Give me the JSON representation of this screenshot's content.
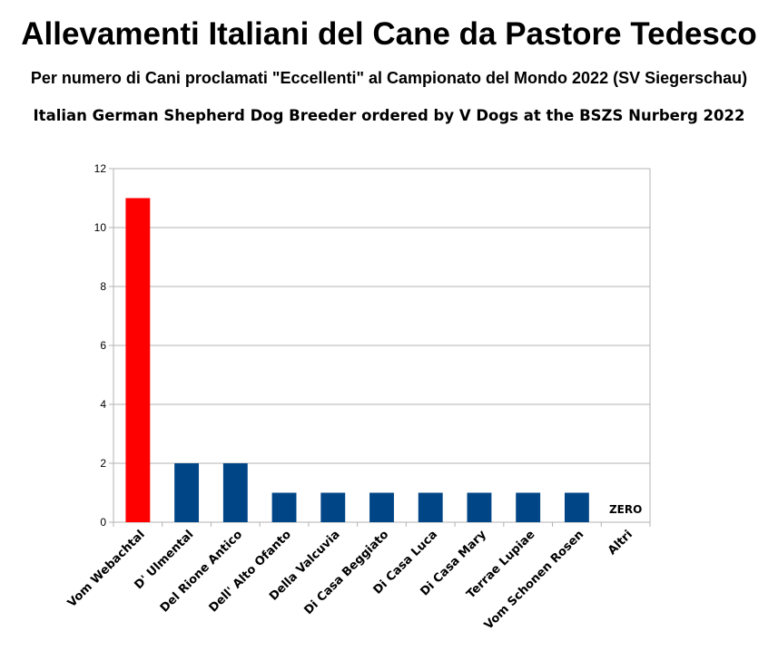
{
  "header": {
    "title": "Allevamenti Italiani del Cane da Pastore Tedesco",
    "subtitle": "Per numero di Cani proclamati \"Eccellenti\" al Campionato del Mondo 2022 (SV Siegerschau)",
    "subtitle2": "Italian German Shepherd Dog Breeder ordered by V Dogs at the BSZS Nurberg 2022"
  },
  "chart_data": {
    "type": "bar",
    "title": "Allevamenti Italiani del Cane da Pastore Tedesco",
    "subtitle": "Per numero di Cani proclamati \"Eccellenti\" al Campionato del Mondo 2022 (SV Siegerschau)",
    "xlabel": "",
    "ylabel": "",
    "categories": [
      "Vom Webachtal",
      "D' Ulmental",
      "Del Rione Antico",
      "Dell' Alto Ofanto",
      "Della Valcuvia",
      "Di Casa Beggiato",
      "Di Casa Luca",
      "Di Casa Mary",
      "Terrae Lupiae",
      "Vom Schonen Rosen",
      "Altri"
    ],
    "values": [
      11,
      2,
      2,
      1,
      1,
      1,
      1,
      1,
      1,
      1,
      0
    ],
    "bar_colors": [
      "#ff0000",
      "#004586",
      "#004586",
      "#004586",
      "#004586",
      "#004586",
      "#004586",
      "#004586",
      "#004586",
      "#004586",
      "#004586"
    ],
    "ylim": [
      0,
      12
    ],
    "yticks": [
      0,
      2,
      4,
      6,
      8,
      10,
      12
    ],
    "grid": true,
    "legend": "none",
    "annotations": [
      {
        "category": "Altri",
        "text": "ZERO"
      }
    ]
  }
}
